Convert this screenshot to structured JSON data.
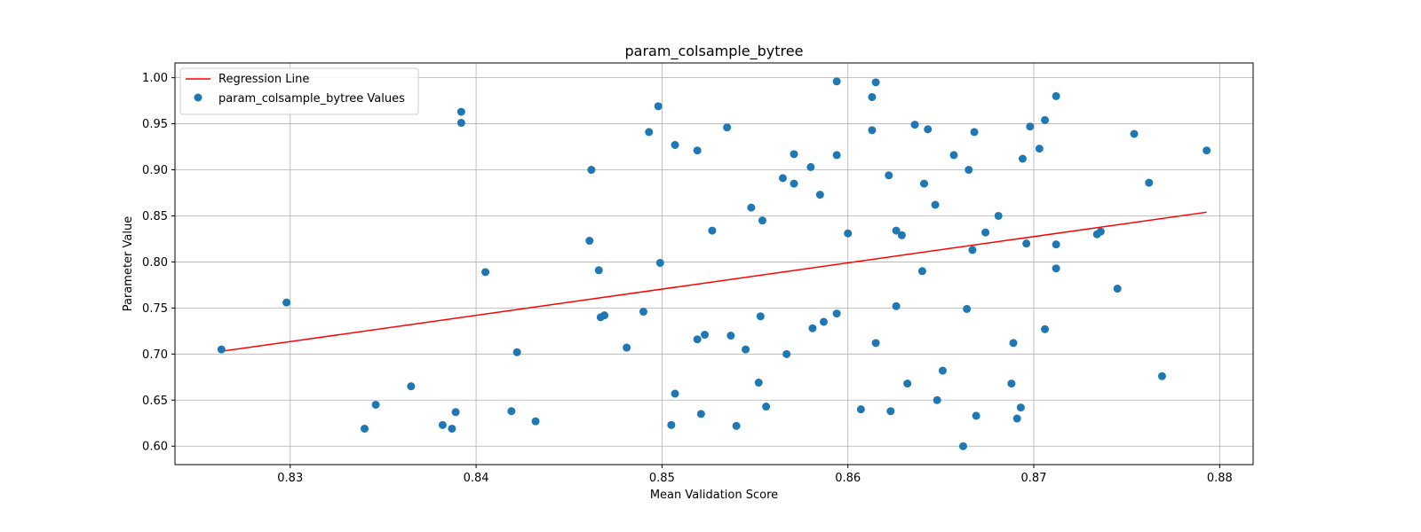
{
  "chart_data": {
    "type": "scatter",
    "title": "param_colsample_bytree",
    "xlabel": "Mean Validation Score",
    "ylabel": "Parameter Value",
    "xlim": [
      0.8238,
      0.8818
    ],
    "ylim": [
      0.58,
      1.016
    ],
    "xticks": [
      0.83,
      0.84,
      0.85,
      0.86,
      0.87,
      0.88
    ],
    "xtick_labels": [
      "0.83",
      "0.84",
      "0.85",
      "0.86",
      "0.87",
      "0.88"
    ],
    "yticks": [
      0.6,
      0.65,
      0.7,
      0.75,
      0.8,
      0.85,
      0.9,
      0.95,
      1.0
    ],
    "ytick_labels": [
      "0.60",
      "0.65",
      "0.70",
      "0.75",
      "0.80",
      "0.85",
      "0.90",
      "0.95",
      "1.00"
    ],
    "grid": true,
    "legend_position": "top-left",
    "series": [
      {
        "name": "Regression Line",
        "kind": "line",
        "color": "#ff0000",
        "points": [
          [
            0.8263,
            0.703
          ],
          [
            0.8793,
            0.854
          ]
        ]
      },
      {
        "name": "param_colsample_bytree Values",
        "kind": "scatter",
        "color": "#1f77b4",
        "points": [
          [
            0.8263,
            0.705
          ],
          [
            0.8298,
            0.756
          ],
          [
            0.834,
            0.619
          ],
          [
            0.8346,
            0.645
          ],
          [
            0.8365,
            0.665
          ],
          [
            0.8382,
            0.623
          ],
          [
            0.8387,
            0.619
          ],
          [
            0.8389,
            0.637
          ],
          [
            0.8392,
            0.963
          ],
          [
            0.8392,
            0.951
          ],
          [
            0.8405,
            0.789
          ],
          [
            0.8419,
            0.638
          ],
          [
            0.8422,
            0.702
          ],
          [
            0.8432,
            0.627
          ],
          [
            0.8461,
            0.823
          ],
          [
            0.8462,
            0.9
          ],
          [
            0.8466,
            0.791
          ],
          [
            0.8467,
            0.74
          ],
          [
            0.8469,
            0.742
          ],
          [
            0.8481,
            0.707
          ],
          [
            0.849,
            0.746
          ],
          [
            0.8493,
            0.941
          ],
          [
            0.8498,
            0.969
          ],
          [
            0.8499,
            0.799
          ],
          [
            0.8505,
            0.623
          ],
          [
            0.8507,
            0.657
          ],
          [
            0.8507,
            0.927
          ],
          [
            0.8519,
            0.921
          ],
          [
            0.8519,
            0.716
          ],
          [
            0.8521,
            0.635
          ],
          [
            0.8523,
            0.721
          ],
          [
            0.8527,
            0.834
          ],
          [
            0.8535,
            0.946
          ],
          [
            0.8537,
            0.72
          ],
          [
            0.854,
            0.622
          ],
          [
            0.8545,
            0.705
          ],
          [
            0.8548,
            0.859
          ],
          [
            0.8552,
            0.669
          ],
          [
            0.8553,
            0.741
          ],
          [
            0.8554,
            0.845
          ],
          [
            0.8556,
            0.643
          ],
          [
            0.8565,
            0.891
          ],
          [
            0.8567,
            0.7
          ],
          [
            0.8571,
            0.917
          ],
          [
            0.8571,
            0.885
          ],
          [
            0.858,
            0.903
          ],
          [
            0.8581,
            0.728
          ],
          [
            0.8585,
            0.873
          ],
          [
            0.8587,
            0.735
          ],
          [
            0.8594,
            0.744
          ],
          [
            0.8594,
            0.996
          ],
          [
            0.8594,
            0.916
          ],
          [
            0.86,
            0.831
          ],
          [
            0.8607,
            0.64
          ],
          [
            0.8613,
            0.979
          ],
          [
            0.8613,
            0.943
          ],
          [
            0.8615,
            0.995
          ],
          [
            0.8615,
            0.712
          ],
          [
            0.8622,
            0.894
          ],
          [
            0.8623,
            0.638
          ],
          [
            0.8626,
            0.752
          ],
          [
            0.8626,
            0.834
          ],
          [
            0.8629,
            0.829
          ],
          [
            0.8632,
            0.668
          ],
          [
            0.8636,
            0.949
          ],
          [
            0.864,
            0.79
          ],
          [
            0.8641,
            0.885
          ],
          [
            0.8643,
            0.944
          ],
          [
            0.8647,
            0.862
          ],
          [
            0.8648,
            0.65
          ],
          [
            0.8651,
            0.682
          ],
          [
            0.8657,
            0.916
          ],
          [
            0.8662,
            0.6
          ],
          [
            0.8664,
            0.749
          ],
          [
            0.8665,
            0.9
          ],
          [
            0.8667,
            0.813
          ],
          [
            0.8668,
            0.941
          ],
          [
            0.8669,
            0.633
          ],
          [
            0.8674,
            0.832
          ],
          [
            0.8681,
            0.85
          ],
          [
            0.8688,
            0.668
          ],
          [
            0.8689,
            0.712
          ],
          [
            0.8691,
            0.63
          ],
          [
            0.8693,
            0.642
          ],
          [
            0.8694,
            0.912
          ],
          [
            0.8696,
            0.82
          ],
          [
            0.8698,
            0.947
          ],
          [
            0.8703,
            0.923
          ],
          [
            0.8706,
            0.954
          ],
          [
            0.8706,
            0.727
          ],
          [
            0.8712,
            0.98
          ],
          [
            0.8712,
            0.793
          ],
          [
            0.8712,
            0.819
          ],
          [
            0.8734,
            0.83
          ],
          [
            0.8736,
            0.833
          ],
          [
            0.8745,
            0.771
          ],
          [
            0.8754,
            0.939
          ],
          [
            0.8762,
            0.886
          ],
          [
            0.8769,
            0.676
          ],
          [
            0.8793,
            0.921
          ]
        ]
      }
    ]
  }
}
